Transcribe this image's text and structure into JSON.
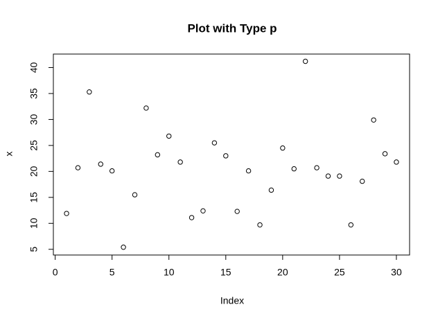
{
  "chart_data": {
    "type": "scatter",
    "title": "Plot with Type p",
    "x_label": "Index",
    "y_label": "x",
    "x": [
      1,
      2,
      3,
      4,
      5,
      6,
      7,
      8,
      9,
      10,
      11,
      12,
      13,
      14,
      15,
      16,
      17,
      18,
      19,
      20,
      21,
      22,
      23,
      24,
      25,
      26,
      27,
      28,
      29,
      30
    ],
    "values": [
      11.9,
      20.7,
      35.3,
      21.4,
      20.1,
      5.4,
      15.5,
      32.2,
      23.2,
      26.8,
      21.8,
      11.1,
      12.4,
      25.5,
      23.0,
      12.3,
      20.1,
      9.7,
      16.4,
      24.5,
      20.5,
      41.2,
      20.7,
      19.1,
      19.1,
      9.7,
      18.1,
      29.9,
      23.4,
      21.8
    ],
    "color": "#000000",
    "xlim": [
      -0.16,
      31.16
    ],
    "ylim": [
      3.9,
      42.6
    ],
    "xticks": [
      0,
      5,
      10,
      15,
      20,
      25,
      30
    ],
    "yticks": [
      5,
      10,
      15,
      20,
      25,
      30,
      35,
      40
    ]
  }
}
